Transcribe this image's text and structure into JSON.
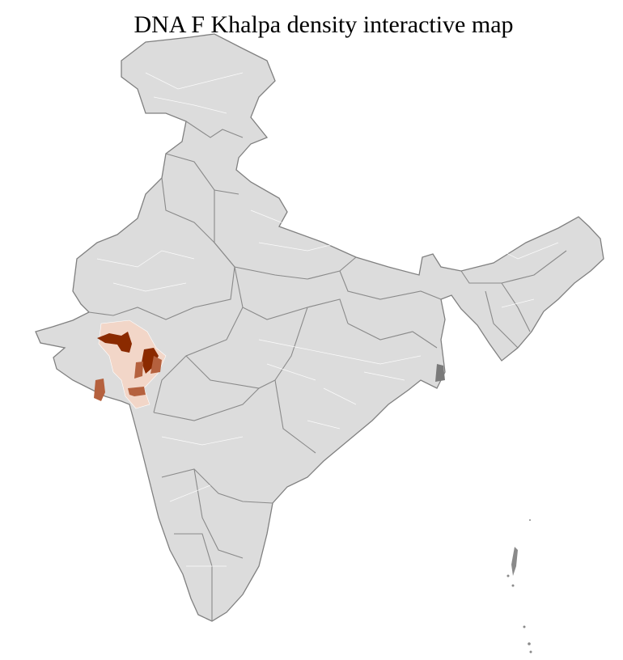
{
  "title": "DNA F Khalpa density interactive map",
  "colors": {
    "land": "#dcdcdc",
    "state_border": "#808080",
    "district_border": "#ffffff",
    "density_low": "#f2d6c8",
    "density_mid": "#b5613e",
    "density_high": "#8b2a00"
  }
}
